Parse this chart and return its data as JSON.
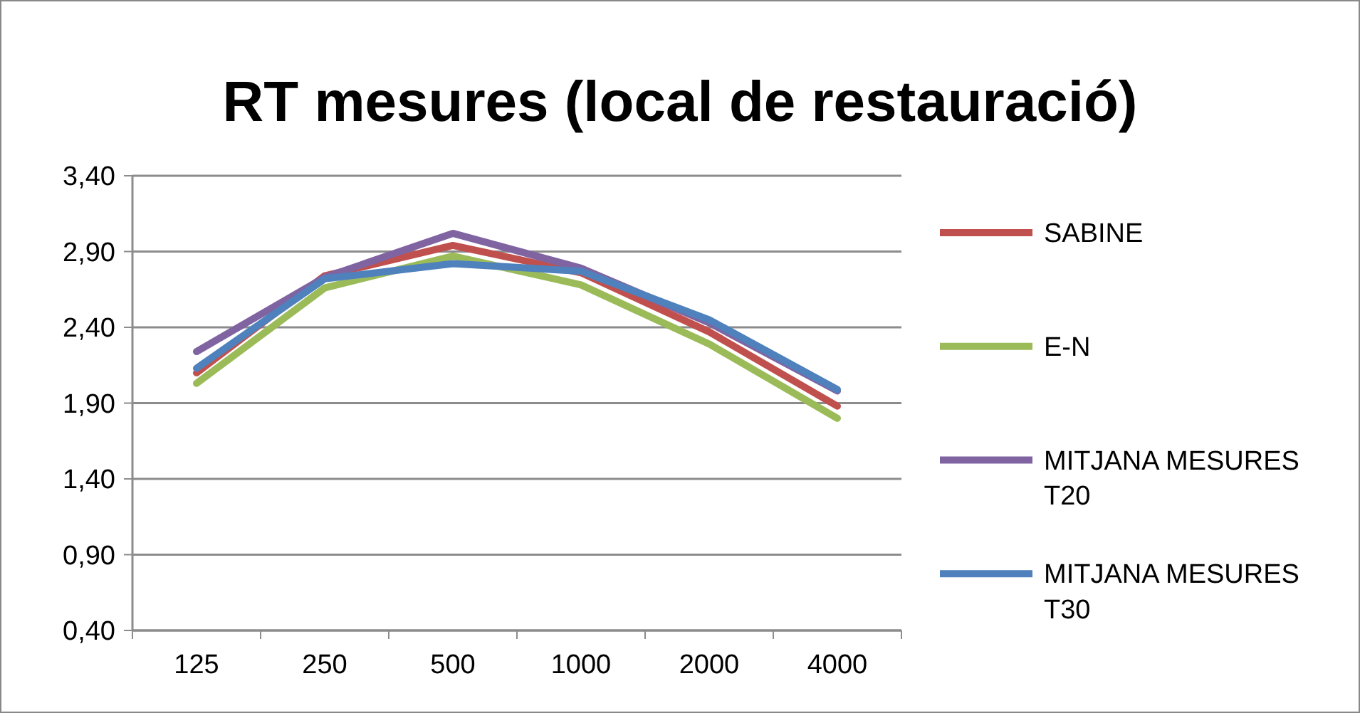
{
  "chart_data": {
    "type": "line",
    "title": "RT mesures (local de restauració)",
    "categories": [
      "125",
      "250",
      "500",
      "1000",
      "2000",
      "4000"
    ],
    "series": [
      {
        "name": "SABINE",
        "color": "#c0504d",
        "values": [
          2.1,
          2.74,
          2.94,
          2.76,
          2.37,
          1.88
        ]
      },
      {
        "name": "E-N",
        "color": "#9bbb59",
        "values": [
          2.03,
          2.66,
          2.87,
          2.68,
          2.29,
          1.8
        ]
      },
      {
        "name": "MITJANA MESURES T20",
        "color": "#8064a2",
        "values": [
          2.24,
          2.73,
          3.02,
          2.79,
          2.43,
          1.98
        ]
      },
      {
        "name": "MITJANA MESURES T30",
        "color": "#4f81bd",
        "values": [
          2.13,
          2.72,
          2.82,
          2.77,
          2.45,
          1.99
        ]
      }
    ],
    "ylim": [
      0.4,
      3.4
    ],
    "yticks": [
      {
        "value": 0.4,
        "label": "0,40"
      },
      {
        "value": 0.9,
        "label": "0,90"
      },
      {
        "value": 1.4,
        "label": "1,40"
      },
      {
        "value": 1.9,
        "label": "1,90"
      },
      {
        "value": 2.4,
        "label": "2,40"
      },
      {
        "value": 2.9,
        "label": "2,90"
      },
      {
        "value": 3.4,
        "label": "3,40"
      }
    ],
    "grid": "y",
    "legend": "right",
    "marker": "none",
    "line_style": "solid"
  }
}
